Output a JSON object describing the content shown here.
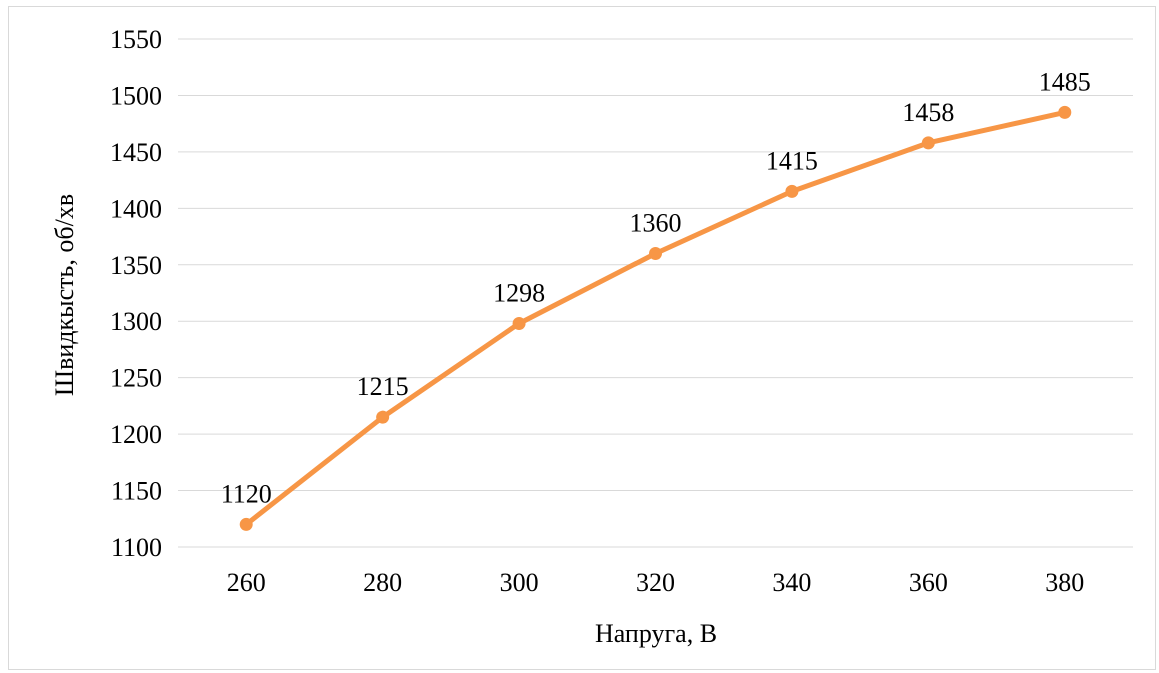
{
  "chart_data": {
    "type": "line",
    "title": "",
    "xlabel": "Напруга, В",
    "ylabel": "Швидкысть, об/хв",
    "x": [
      260,
      280,
      300,
      320,
      340,
      360,
      380
    ],
    "x_tick_labels": [
      "260",
      "280",
      "300",
      "320",
      "340",
      "360",
      "380"
    ],
    "series": [
      {
        "values": [
          1120,
          1215,
          1298,
          1360,
          1415,
          1458,
          1485
        ],
        "color": "#f79646",
        "data_labels": [
          "1120",
          "1215",
          "1298",
          "1360",
          "1415",
          "1458",
          "1485"
        ]
      }
    ],
    "ylim": [
      1100,
      1550
    ],
    "y_ticks": [
      1100,
      1150,
      1200,
      1250,
      1300,
      1350,
      1400,
      1450,
      1500,
      1550
    ],
    "y_tick_labels": [
      "1100",
      "1150",
      "1200",
      "1250",
      "1300",
      "1350",
      "1400",
      "1450",
      "1500",
      "1550"
    ],
    "grid": true,
    "legend": "none",
    "gridline_color": "#d9d9d9"
  }
}
